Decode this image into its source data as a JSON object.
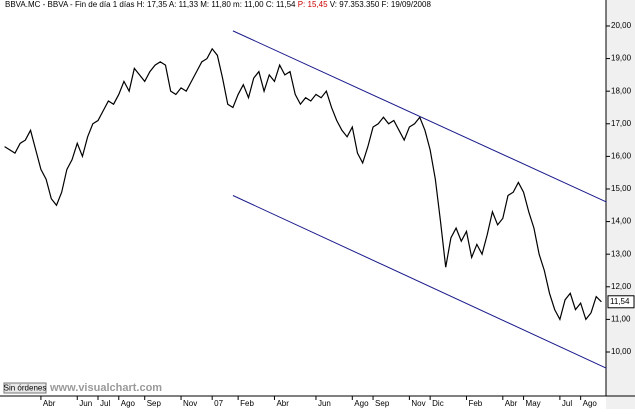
{
  "chart_data": {
    "type": "line",
    "header": [
      "BBVA.MC - BBVA - Fin de día 1 días",
      "H: 17,35",
      "A: 11,33",
      "M: 11,80",
      "m: 11,00",
      "C: 11,54",
      "P: 15,45",
      "V: 97.353.350",
      "F: 19/09/2008"
    ],
    "header_colors": [
      "#000000",
      "#000000",
      "#000000",
      "#000000",
      "#000000",
      "#000000",
      "#cc0000",
      "#000000",
      "#000000"
    ],
    "color": "#000000",
    "values": [
      16.3,
      16.2,
      16.1,
      16.4,
      16.5,
      16.8,
      16.2,
      15.6,
      15.3,
      14.7,
      14.5,
      14.9,
      15.6,
      15.9,
      16.4,
      16.0,
      16.6,
      17.0,
      17.1,
      17.4,
      17.7,
      17.6,
      17.9,
      18.3,
      18.0,
      18.7,
      18.5,
      18.3,
      18.6,
      18.8,
      18.9,
      18.8,
      18.0,
      17.9,
      18.1,
      18.0,
      18.3,
      18.6,
      18.9,
      19.0,
      19.3,
      19.1,
      18.4,
      17.6,
      17.5,
      17.9,
      18.2,
      17.8,
      18.4,
      18.6,
      18.0,
      18.5,
      18.3,
      18.8,
      18.5,
      18.6,
      17.9,
      17.6,
      17.8,
      17.7,
      17.9,
      17.8,
      18.0,
      17.5,
      17.1,
      16.8,
      16.6,
      16.9,
      16.1,
      15.8,
      16.3,
      16.9,
      17.0,
      17.2,
      17.0,
      17.1,
      16.8,
      16.5,
      16.9,
      17.0,
      17.2,
      16.8,
      16.2,
      15.3,
      14.0,
      12.6,
      13.5,
      13.8,
      13.4,
      13.7,
      12.9,
      13.3,
      13.0,
      13.6,
      14.3,
      13.9,
      14.1,
      14.8,
      14.9,
      15.2,
      14.9,
      14.3,
      13.8,
      13.0,
      12.5,
      11.8,
      11.3,
      11.0,
      11.6,
      11.8,
      11.3,
      11.5,
      11.0,
      11.2,
      11.7,
      11.54
    ],
    "xlim": [
      -0.5,
      115.5
    ],
    "xticks": [
      {
        "value": 7,
        "label": "Abr"
      },
      {
        "value": 14,
        "label": "Jun"
      },
      {
        "value": 18,
        "label": "Jul"
      },
      {
        "value": 22,
        "label": "Ago"
      },
      {
        "value": 27,
        "label": "Sep"
      },
      {
        "value": 34,
        "label": "Nov"
      },
      {
        "value": 40,
        "label": "07"
      },
      {
        "value": 45,
        "label": "Feb"
      },
      {
        "value": 52,
        "label": "Abr"
      },
      {
        "value": 60,
        "label": "Jun"
      },
      {
        "value": 67,
        "label": "Ago"
      },
      {
        "value": 71,
        "label": "Sep"
      },
      {
        "value": 78,
        "label": "Nov"
      },
      {
        "value": 82,
        "label": "Dic"
      },
      {
        "value": 89,
        "label": "Feb"
      },
      {
        "value": 96,
        "label": "Abr"
      },
      {
        "value": 100,
        "label": "May"
      },
      {
        "value": 107,
        "label": "Jul"
      },
      {
        "value": 111,
        "label": "Ago"
      }
    ],
    "ylim": [
      8.65,
      20.49
    ],
    "yticks": [
      {
        "value": 10,
        "label": "10,00"
      },
      {
        "value": 11,
        "label": "11,00"
      },
      {
        "value": 12,
        "label": "12,00"
      },
      {
        "value": 13,
        "label": "13,00"
      },
      {
        "value": 14,
        "label": "14,00"
      },
      {
        "value": 15,
        "label": "15,00"
      },
      {
        "value": 16,
        "label": "16,00"
      },
      {
        "value": 17,
        "label": "17,00"
      },
      {
        "value": 18,
        "label": "18,00"
      },
      {
        "value": 19,
        "label": "19,00"
      },
      {
        "value": 20,
        "label": "20,00"
      }
    ],
    "trendlines": [
      {
        "color": "#1a1a8c",
        "x": [
          44,
          116
        ],
        "y": [
          19.85,
          14.6
        ]
      },
      {
        "color": "#1a1a8c",
        "x": [
          44,
          116
        ],
        "y": [
          14.8,
          9.5
        ]
      }
    ],
    "current_price": {
      "value": 11.54,
      "label": "11,54"
    },
    "status": "Sin órdenes",
    "watermark": "www.visualchart.com"
  }
}
